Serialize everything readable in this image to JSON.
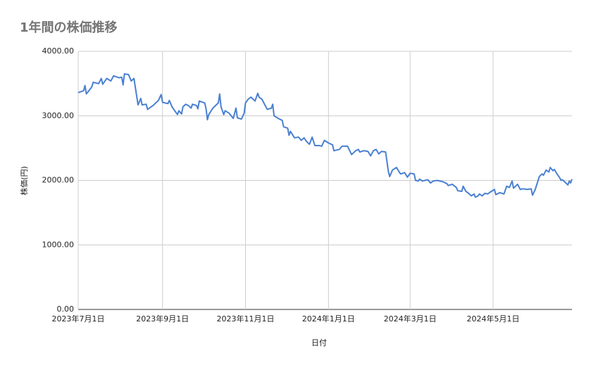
{
  "chart_data": {
    "type": "line",
    "title": "1年間の株価推移",
    "x_label": "日付",
    "y_label": "株価(円)",
    "color": "#4a80d2",
    "grid": true,
    "xlim": [
      "2023-07-01",
      "2024-06-28"
    ],
    "xticks": [
      {
        "value": "2023-07-01",
        "label": "2023年7月1日"
      },
      {
        "value": "2023-09-01",
        "label": "2023年9月1日"
      },
      {
        "value": "2023-11-01",
        "label": "2023年11月1日"
      },
      {
        "value": "2024-01-01",
        "label": "2024年1月1日"
      },
      {
        "value": "2024-03-01",
        "label": "2024年3月1日"
      },
      {
        "value": "2024-05-01",
        "label": "2024年5月1日"
      }
    ],
    "ylim": [
      0,
      4000
    ],
    "yticks": [
      {
        "value": 0,
        "label": "0.00"
      },
      {
        "value": 1000,
        "label": "1000.00"
      },
      {
        "value": 2000,
        "label": "2000.00"
      },
      {
        "value": 3000,
        "label": "3000.00"
      },
      {
        "value": 4000,
        "label": "4000.00"
      }
    ],
    "x": [
      "2023-07-01",
      "2023-07-05",
      "2023-07-06",
      "2023-07-07",
      "2023-07-10",
      "2023-07-11",
      "2023-07-12",
      "2023-07-16",
      "2023-07-18",
      "2023-07-19",
      "2023-07-22",
      "2023-07-25",
      "2023-07-27",
      "2023-07-31",
      "2023-08-02",
      "2023-08-03",
      "2023-08-04",
      "2023-08-07",
      "2023-08-09",
      "2023-08-11",
      "2023-08-14",
      "2023-08-16",
      "2023-08-17",
      "2023-08-20",
      "2023-08-21",
      "2023-08-25",
      "2023-08-29",
      "2023-08-31",
      "2023-09-01",
      "2023-09-05",
      "2023-09-06",
      "2023-09-08",
      "2023-09-10",
      "2023-09-12",
      "2023-09-13",
      "2023-09-15",
      "2023-09-16",
      "2023-09-18",
      "2023-09-20",
      "2023-09-22",
      "2023-09-23",
      "2023-09-26",
      "2023-09-27",
      "2023-09-28",
      "2023-10-02",
      "2023-10-03",
      "2023-10-04",
      "2023-10-05",
      "2023-10-08",
      "2023-10-12",
      "2023-10-13",
      "2023-10-14",
      "2023-10-16",
      "2023-10-17",
      "2023-10-20",
      "2023-10-23",
      "2023-10-25",
      "2023-10-26",
      "2023-10-29",
      "2023-10-31",
      "2023-11-01",
      "2023-11-03",
      "2023-11-05",
      "2023-11-08",
      "2023-11-10",
      "2023-11-11",
      "2023-11-13",
      "2023-11-15",
      "2023-11-17",
      "2023-11-20",
      "2023-11-21",
      "2023-11-22",
      "2023-11-26",
      "2023-11-28",
      "2023-11-29",
      "2023-12-02",
      "2023-12-03",
      "2023-12-04",
      "2023-12-07",
      "2023-12-10",
      "2023-12-12",
      "2023-12-14",
      "2023-12-16",
      "2023-12-18",
      "2023-12-20",
      "2023-12-22",
      "2023-12-25",
      "2023-12-27",
      "2023-12-29",
      "2024-01-01",
      "2024-01-04",
      "2024-01-05",
      "2024-01-09",
      "2024-01-11",
      "2024-01-15",
      "2024-01-18",
      "2024-01-21",
      "2024-01-23",
      "2024-01-24",
      "2024-01-27",
      "2024-01-30",
      "2024-02-01",
      "2024-02-03",
      "2024-02-05",
      "2024-02-07",
      "2024-02-09",
      "2024-02-12",
      "2024-02-14",
      "2024-02-15",
      "2024-02-17",
      "2024-02-20",
      "2024-02-22",
      "2024-02-23",
      "2024-02-26",
      "2024-02-28",
      "2024-02-29",
      "2024-03-01",
      "2024-03-04",
      "2024-03-05",
      "2024-03-07",
      "2024-03-08",
      "2024-03-10",
      "2024-03-12",
      "2024-03-14",
      "2024-03-16",
      "2024-03-18",
      "2024-03-21",
      "2024-03-25",
      "2024-03-28",
      "2024-03-29",
      "2024-04-01",
      "2024-04-04",
      "2024-04-05",
      "2024-04-08",
      "2024-04-09",
      "2024-04-11",
      "2024-04-13",
      "2024-04-15",
      "2024-04-17",
      "2024-04-18",
      "2024-04-20",
      "2024-04-21",
      "2024-04-23",
      "2024-04-25",
      "2024-04-27",
      "2024-04-29",
      "2024-05-02",
      "2024-05-03",
      "2024-05-06",
      "2024-05-09",
      "2024-05-11",
      "2024-05-13",
      "2024-05-15",
      "2024-05-16",
      "2024-05-19",
      "2024-05-21",
      "2024-05-23",
      "2024-05-26",
      "2024-05-29",
      "2024-05-30",
      "2024-06-01",
      "2024-06-04",
      "2024-06-06",
      "2024-06-07",
      "2024-06-09",
      "2024-06-11",
      "2024-06-12",
      "2024-06-14",
      "2024-06-15",
      "2024-06-17",
      "2024-06-19",
      "2024-06-20",
      "2024-06-21",
      "2024-06-23",
      "2024-06-25",
      "2024-06-26",
      "2024-06-27",
      "2024-06-28"
    ],
    "values": [
      3360,
      3390,
      3470,
      3340,
      3420,
      3450,
      3520,
      3500,
      3580,
      3490,
      3580,
      3540,
      3620,
      3590,
      3600,
      3480,
      3650,
      3640,
      3540,
      3580,
      3170,
      3270,
      3170,
      3180,
      3100,
      3160,
      3240,
      3330,
      3210,
      3190,
      3240,
      3140,
      3080,
      3020,
      3080,
      3030,
      3140,
      3180,
      3160,
      3120,
      3180,
      3160,
      3110,
      3230,
      3200,
      3110,
      2940,
      3020,
      3120,
      3200,
      3340,
      3140,
      3020,
      3080,
      3040,
      2960,
      3120,
      2970,
      2950,
      3040,
      3200,
      3260,
      3290,
      3230,
      3350,
      3290,
      3260,
      3180,
      3100,
      3120,
      3180,
      3000,
      2950,
      2930,
      2830,
      2810,
      2700,
      2760,
      2660,
      2670,
      2620,
      2660,
      2600,
      2560,
      2670,
      2540,
      2540,
      2530,
      2620,
      2580,
      2550,
      2460,
      2480,
      2530,
      2530,
      2400,
      2460,
      2480,
      2440,
      2460,
      2450,
      2380,
      2460,
      2480,
      2410,
      2450,
      2440,
      2140,
      2060,
      2160,
      2200,
      2130,
      2100,
      2120,
      2050,
      2080,
      2110,
      2100,
      2000,
      1990,
      2020,
      1990,
      2000,
      2010,
      1960,
      1990,
      2000,
      1980,
      1950,
      1920,
      1940,
      1890,
      1840,
      1830,
      1910,
      1830,
      1800,
      1760,
      1790,
      1740,
      1760,
      1790,
      1760,
      1800,
      1790,
      1820,
      1860,
      1780,
      1810,
      1790,
      1910,
      1890,
      1990,
      1880,
      1940,
      1860,
      1870,
      1860,
      1870,
      1770,
      1860,
      2060,
      2100,
      2080,
      2160,
      2130,
      2200,
      2150,
      2170,
      2100,
      2040,
      2000,
      2010,
      1970,
      1930,
      1990,
      1960,
      2020
    ]
  }
}
